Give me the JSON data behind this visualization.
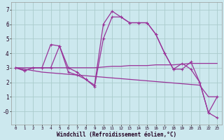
{
  "xlabel": "Windchill (Refroidissement éolien,°C)",
  "background_color": "#cce8ee",
  "grid_color": "#aacccc",
  "line_color": "#993399",
  "x_values": [
    0,
    1,
    2,
    3,
    4,
    5,
    6,
    7,
    8,
    9,
    10,
    11,
    12,
    13,
    14,
    15,
    16,
    17,
    18,
    19,
    20,
    21,
    22,
    23
  ],
  "series1": [
    3.0,
    2.8,
    3.0,
    3.0,
    4.6,
    4.5,
    3.0,
    2.7,
    2.2,
    1.8,
    6.0,
    6.9,
    6.5,
    6.1,
    6.1,
    6.1,
    5.3,
    4.0,
    2.9,
    3.3,
    2.9,
    2.0,
    -0.1,
    -0.45
  ],
  "series2": [
    3.0,
    2.8,
    3.0,
    3.0,
    3.0,
    4.5,
    2.7,
    2.5,
    2.2,
    1.7,
    5.0,
    6.5,
    6.5,
    6.1,
    6.1,
    6.1,
    5.3,
    4.0,
    2.9,
    2.9,
    3.4,
    2.0,
    -0.1,
    1.0
  ],
  "trend_flat": [
    3.0,
    3.0,
    3.0,
    3.0,
    3.0,
    3.0,
    3.0,
    3.0,
    3.0,
    3.0,
    3.05,
    3.1,
    3.1,
    3.15,
    3.15,
    3.15,
    3.2,
    3.2,
    3.2,
    3.25,
    3.3,
    3.3,
    3.3,
    3.3
  ],
  "trend_diag": [
    3.0,
    2.9,
    2.8,
    2.7,
    2.65,
    2.6,
    2.55,
    2.5,
    2.45,
    2.4,
    2.35,
    2.3,
    2.25,
    2.2,
    2.15,
    2.1,
    2.05,
    2.0,
    1.95,
    1.9,
    1.85,
    1.8,
    1.0,
    1.0
  ],
  "ylim": [
    -0.9,
    7.5
  ],
  "yticks": [
    0,
    1,
    2,
    3,
    4,
    5,
    6,
    7
  ],
  "ytick_labels": [
    "-0",
    "1",
    "2",
    "3",
    "4",
    "5",
    "6",
    "7"
  ]
}
